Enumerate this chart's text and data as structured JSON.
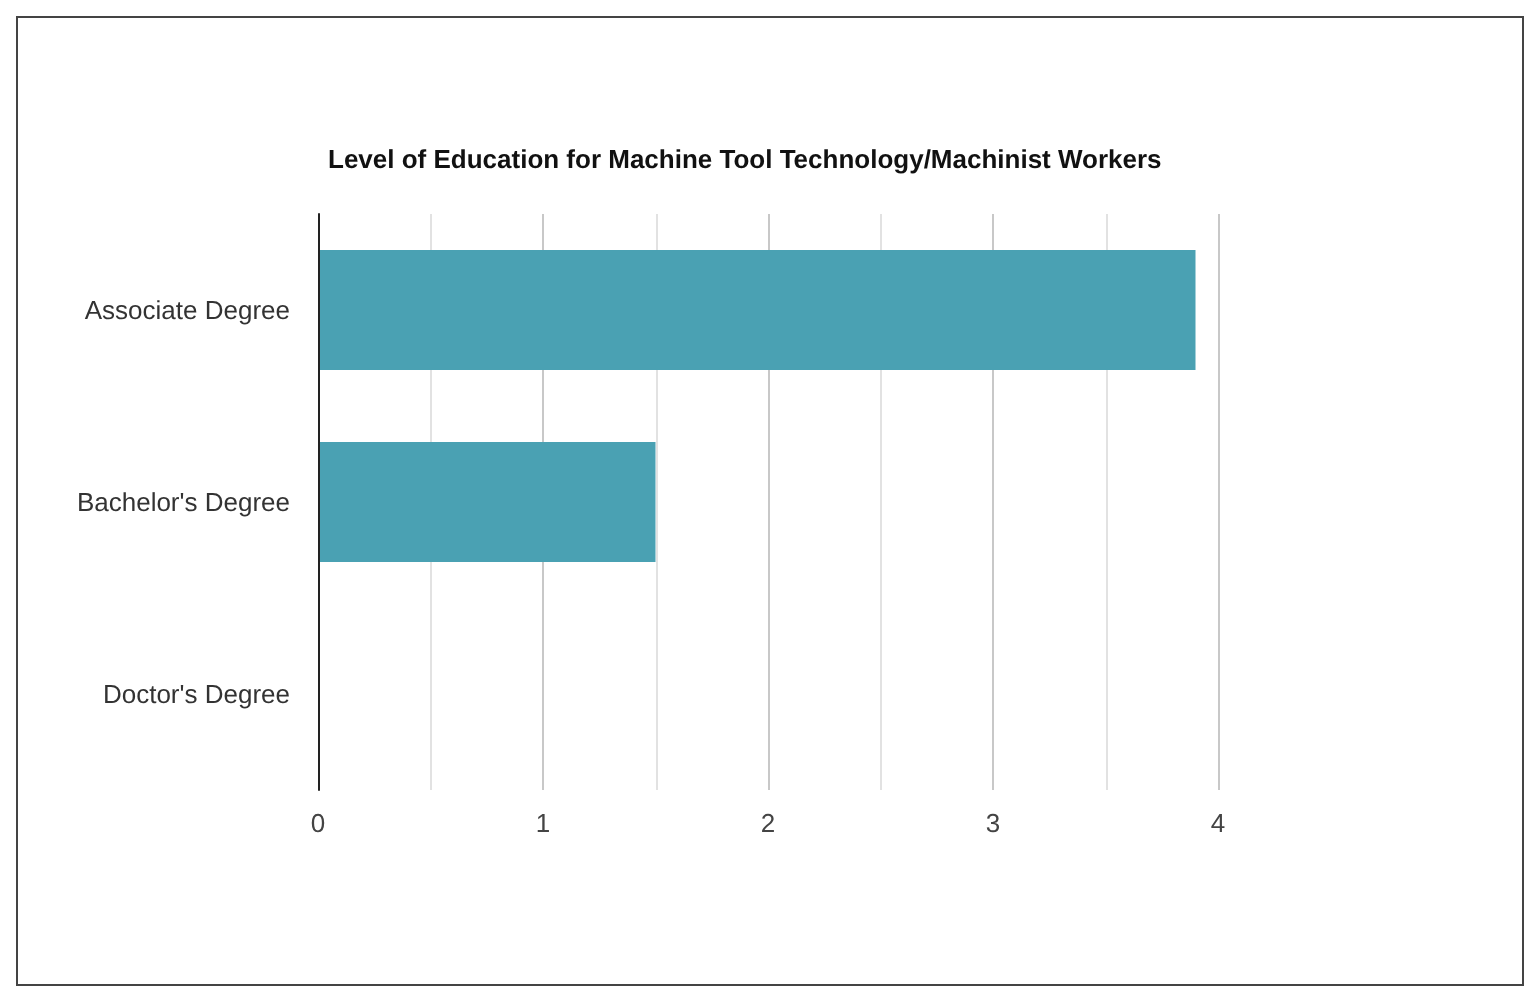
{
  "chart_data": {
    "type": "bar",
    "orientation": "horizontal",
    "title": "Level of Education for Machine Tool Technology/Machinist Workers",
    "categories": [
      "Associate Degree",
      "Bachelor's Degree",
      "Doctor's Degree"
    ],
    "values": [
      3.9,
      1.5,
      0
    ],
    "color": "#4aa1b3",
    "xlim": [
      0,
      4
    ],
    "xticks": [
      0,
      {
        "value": 0.5,
        "label": null
      },
      1,
      {
        "value": 1.5,
        "label": null
      },
      2,
      {
        "value": 2.5,
        "label": null
      },
      3,
      {
        "value": 3.5,
        "label": null
      },
      4
    ],
    "grid": "x"
  }
}
